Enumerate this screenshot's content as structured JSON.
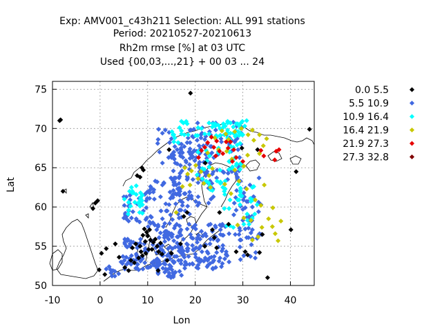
{
  "chart_data": {
    "type": "scatter",
    "title_lines": [
      "Exp: AMV001_c43h211   Selection: ALL    991 stations",
      "Period: 20210527-20210613",
      "Rh2m rmse [%] at  03 UTC",
      "Used {00,03,...,21} + 00 03 ... 24"
    ],
    "xlabel": "Lon",
    "ylabel": "Lat",
    "xlim": [
      -10,
      45
    ],
    "ylim": [
      50,
      76
    ],
    "xticks": [
      -10,
      0,
      10,
      20,
      30,
      40
    ],
    "yticks": [
      50,
      55,
      60,
      65,
      70,
      75
    ],
    "grid": true,
    "legend_position": "right",
    "series": [
      {
        "name": "0.0 5.5",
        "color": "#000000",
        "points": [
          [
            -8.5,
            71.0
          ],
          [
            -8.3,
            71.1
          ],
          [
            19.0,
            74.5
          ],
          [
            -7.8,
            62.0
          ],
          [
            -1.0,
            60.5
          ],
          [
            -0.5,
            60.8
          ],
          [
            -1.5,
            59.8
          ],
          [
            7.8,
            64.0
          ],
          [
            8.4,
            63.8
          ],
          [
            9.1,
            64.7
          ],
          [
            8.8,
            65.0
          ],
          [
            14.5,
            67.3
          ],
          [
            22.1,
            65.6
          ],
          [
            33.1,
            67.3
          ],
          [
            41.2,
            64.5
          ],
          [
            44.0,
            69.9
          ],
          [
            29.8,
            67.5
          ],
          [
            3.2,
            55.3
          ],
          [
            4.0,
            53.6
          ],
          [
            5.2,
            52.3
          ],
          [
            6.0,
            51.9
          ],
          [
            6.5,
            53.2
          ],
          [
            7.2,
            52.9
          ],
          [
            8.1,
            53.5
          ],
          [
            8.6,
            54.3
          ],
          [
            9.5,
            55.6
          ],
          [
            9.0,
            56.4
          ],
          [
            10.0,
            56.3
          ],
          [
            10.6,
            55.8
          ],
          [
            11.2,
            55.5
          ],
          [
            12.0,
            55.0
          ],
          [
            11.6,
            55.9
          ],
          [
            9.8,
            56.8
          ],
          [
            9.3,
            57.2
          ],
          [
            10.4,
            57.1
          ],
          [
            8.4,
            55.0
          ],
          [
            8.9,
            53.8
          ],
          [
            9.6,
            54.1
          ],
          [
            10.9,
            54.6
          ],
          [
            12.3,
            54.3
          ],
          [
            13.0,
            54.0
          ],
          [
            12.7,
            55.4
          ],
          [
            10.2,
            54.6
          ],
          [
            6.8,
            54.8
          ],
          [
            7.5,
            55.3
          ],
          [
            14.1,
            53.2
          ],
          [
            15.0,
            54.1
          ],
          [
            16.9,
            55.3
          ],
          [
            17.6,
            58.8
          ],
          [
            18.3,
            59.3
          ],
          [
            24.0,
            56.1
          ],
          [
            25.1,
            59.3
          ],
          [
            27.0,
            57.8
          ],
          [
            30.5,
            54.3
          ],
          [
            31.0,
            53.9
          ],
          [
            28.6,
            54.3
          ],
          [
            33.5,
            54.2
          ],
          [
            34.1,
            56.5
          ],
          [
            35.2,
            51.0
          ],
          [
            -0.2,
            52.0
          ],
          [
            1.0,
            51.4
          ],
          [
            0.3,
            54.1
          ],
          [
            1.3,
            54.7
          ],
          [
            22.0,
            55.0
          ],
          [
            24.5,
            54.8
          ],
          [
            12.2,
            51.9
          ],
          [
            23.6,
            57.1
          ],
          [
            40.1,
            57.1
          ]
        ]
      },
      {
        "name": "5.5 10.9",
        "color": "#4169e1",
        "points": []
      },
      {
        "name": "10.9 16.4",
        "color": "#00ffff",
        "points": []
      },
      {
        "name": "16.4 21.9",
        "color": "#c8c800",
        "points": [
          [
            18.4,
            64.2
          ],
          [
            19.2,
            64.6
          ],
          [
            20.1,
            65.3
          ],
          [
            18.9,
            62.8
          ],
          [
            20.6,
            63.6
          ],
          [
            21.2,
            64.5
          ],
          [
            21.8,
            63.0
          ],
          [
            17.3,
            62.6
          ],
          [
            17.8,
            65.0
          ],
          [
            22.6,
            66.9
          ],
          [
            24.1,
            68.8
          ],
          [
            25.6,
            69.7
          ],
          [
            26.4,
            69.3
          ],
          [
            27.0,
            68.6
          ],
          [
            28.3,
            69.6
          ],
          [
            29.7,
            70.0
          ],
          [
            31.1,
            69.2
          ],
          [
            32.0,
            69.8
          ],
          [
            33.5,
            69.2
          ],
          [
            35.0,
            68.7
          ],
          [
            34.3,
            67.8
          ],
          [
            22.9,
            64.0
          ],
          [
            24.9,
            67.3
          ],
          [
            23.6,
            64.9
          ],
          [
            26.6,
            67.1
          ],
          [
            27.7,
            66.1
          ],
          [
            28.3,
            64.7
          ],
          [
            30.2,
            65.2
          ],
          [
            31.0,
            66.6
          ],
          [
            29.2,
            63.3
          ],
          [
            30.8,
            62.3
          ],
          [
            27.5,
            61.7
          ],
          [
            32.6,
            60.9
          ],
          [
            31.7,
            58.3
          ],
          [
            34.0,
            57.4
          ],
          [
            33.2,
            56.2
          ],
          [
            36.2,
            57.5
          ],
          [
            35.4,
            58.5
          ],
          [
            37.4,
            55.7
          ],
          [
            33.8,
            60.2
          ],
          [
            36.3,
            59.9
          ],
          [
            32.0,
            55.8
          ],
          [
            26.2,
            62.9
          ],
          [
            23.2,
            62.5
          ],
          [
            16.0,
            59.3
          ],
          [
            28.9,
            57.7
          ],
          [
            30.2,
            58.6
          ],
          [
            34.5,
            62.8
          ],
          [
            38.0,
            58.2
          ],
          [
            36.8,
            56.6
          ],
          [
            32.3,
            68.5
          ],
          [
            33.5,
            66.8
          ]
        ]
      },
      {
        "name": "21.9 27.3",
        "color": "#e60000",
        "points": [
          [
            21.3,
            67.2
          ],
          [
            22.0,
            67.6
          ],
          [
            22.6,
            68.2
          ],
          [
            23.4,
            68.9
          ],
          [
            24.5,
            68.4
          ],
          [
            23.9,
            67.6
          ],
          [
            25.1,
            67.1
          ],
          [
            24.3,
            66.5
          ],
          [
            26.5,
            68.3
          ],
          [
            26.9,
            67.5
          ],
          [
            27.4,
            68.3
          ],
          [
            28.1,
            67.3
          ],
          [
            28.6,
            66.3
          ],
          [
            27.8,
            65.8
          ],
          [
            25.8,
            66.8
          ],
          [
            20.7,
            66.3
          ],
          [
            36.7,
            66.0
          ],
          [
            33.8,
            67.2
          ],
          [
            37.6,
            67.3
          ],
          [
            37.0,
            67.1
          ],
          [
            34.4,
            66.5
          ],
          [
            30.0,
            65.8
          ]
        ]
      },
      {
        "name": "27.3 32.8",
        "color": "#800000",
        "points": []
      }
    ]
  }
}
